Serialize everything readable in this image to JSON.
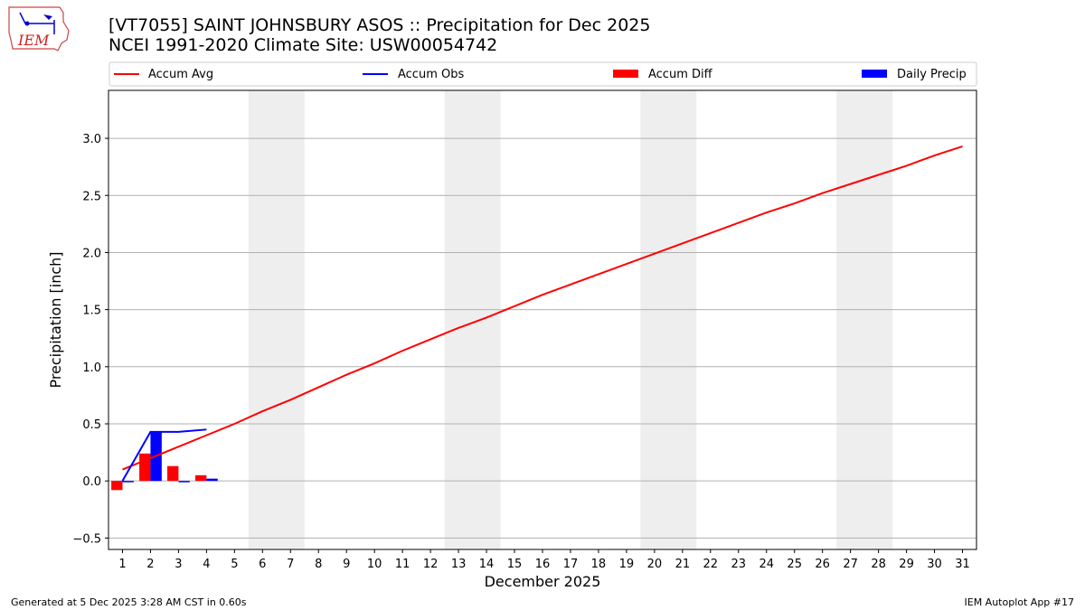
{
  "header": {
    "title": "[VT7055] SAINT JOHNSBURY ASOS :: Precipitation for Dec 2025",
    "subtitle": "NCEI 1991-2020 Climate Site: USW00054742",
    "logo_text": "IEM"
  },
  "footer": {
    "left": "Generated at 5 Dec 2025 3:28 AM CST in 0.60s",
    "right": "IEM Autoplot App #17"
  },
  "colors": {
    "accum_avg": "#ff0000",
    "accum_obs": "#0000ff",
    "accum_diff": "#ff0000",
    "daily_precip": "#0000ff",
    "weekend_shade": "#eeeeee",
    "grid": "#b0b0b0"
  },
  "chart_data": {
    "type": "bar",
    "title": "[VT7055] SAINT JOHNSBURY ASOS :: Precipitation for Dec 2025",
    "subtitle": "NCEI 1991-2020 Climate Site: USW00054742",
    "xlabel": "December 2025",
    "ylabel": "Precipitation [inch]",
    "ylim": [
      -0.6,
      3.42
    ],
    "yticks": [
      -0.5,
      0.0,
      0.5,
      1.0,
      1.5,
      2.0,
      2.5,
      3.0
    ],
    "ytick_labels": [
      "−0.5",
      "0.0",
      "0.5",
      "1.0",
      "1.5",
      "2.0",
      "2.5",
      "3.0"
    ],
    "xlim": [
      0.5,
      31.5
    ],
    "x": [
      1,
      2,
      3,
      4,
      5,
      6,
      7,
      8,
      9,
      10,
      11,
      12,
      13,
      14,
      15,
      16,
      17,
      18,
      19,
      20,
      21,
      22,
      23,
      24,
      25,
      26,
      27,
      28,
      29,
      30,
      31
    ],
    "weekend_days": [
      6,
      7,
      13,
      14,
      20,
      21,
      27,
      28
    ],
    "grid": "y",
    "legend_position": "top",
    "legend": [
      "Accum Avg",
      "Accum Obs",
      "Accum Diff",
      "Daily Precip"
    ],
    "series": [
      {
        "name": "Accum Avg",
        "kind": "line",
        "values": [
          0.1,
          0.2,
          0.3,
          0.4,
          0.5,
          0.61,
          0.71,
          0.82,
          0.93,
          1.03,
          1.14,
          1.24,
          1.34,
          1.43,
          1.53,
          1.63,
          1.72,
          1.81,
          1.9,
          1.99,
          2.08,
          2.17,
          2.26,
          2.35,
          2.43,
          2.52,
          2.6,
          2.68,
          2.76,
          2.85,
          2.93
        ]
      },
      {
        "name": "Accum Obs",
        "kind": "line",
        "x": [
          1,
          2,
          3,
          4
        ],
        "values": [
          0.0,
          0.43,
          0.43,
          0.45
        ]
      },
      {
        "name": "Accum Diff",
        "kind": "bar",
        "x": [
          1,
          2,
          3,
          4
        ],
        "values": [
          -0.08,
          0.24,
          0.13,
          0.05
        ]
      },
      {
        "name": "Daily Precip",
        "kind": "bar",
        "x": [
          1,
          2,
          3,
          4
        ],
        "values": [
          0.0,
          0.43,
          0.0,
          0.02
        ]
      }
    ]
  }
}
